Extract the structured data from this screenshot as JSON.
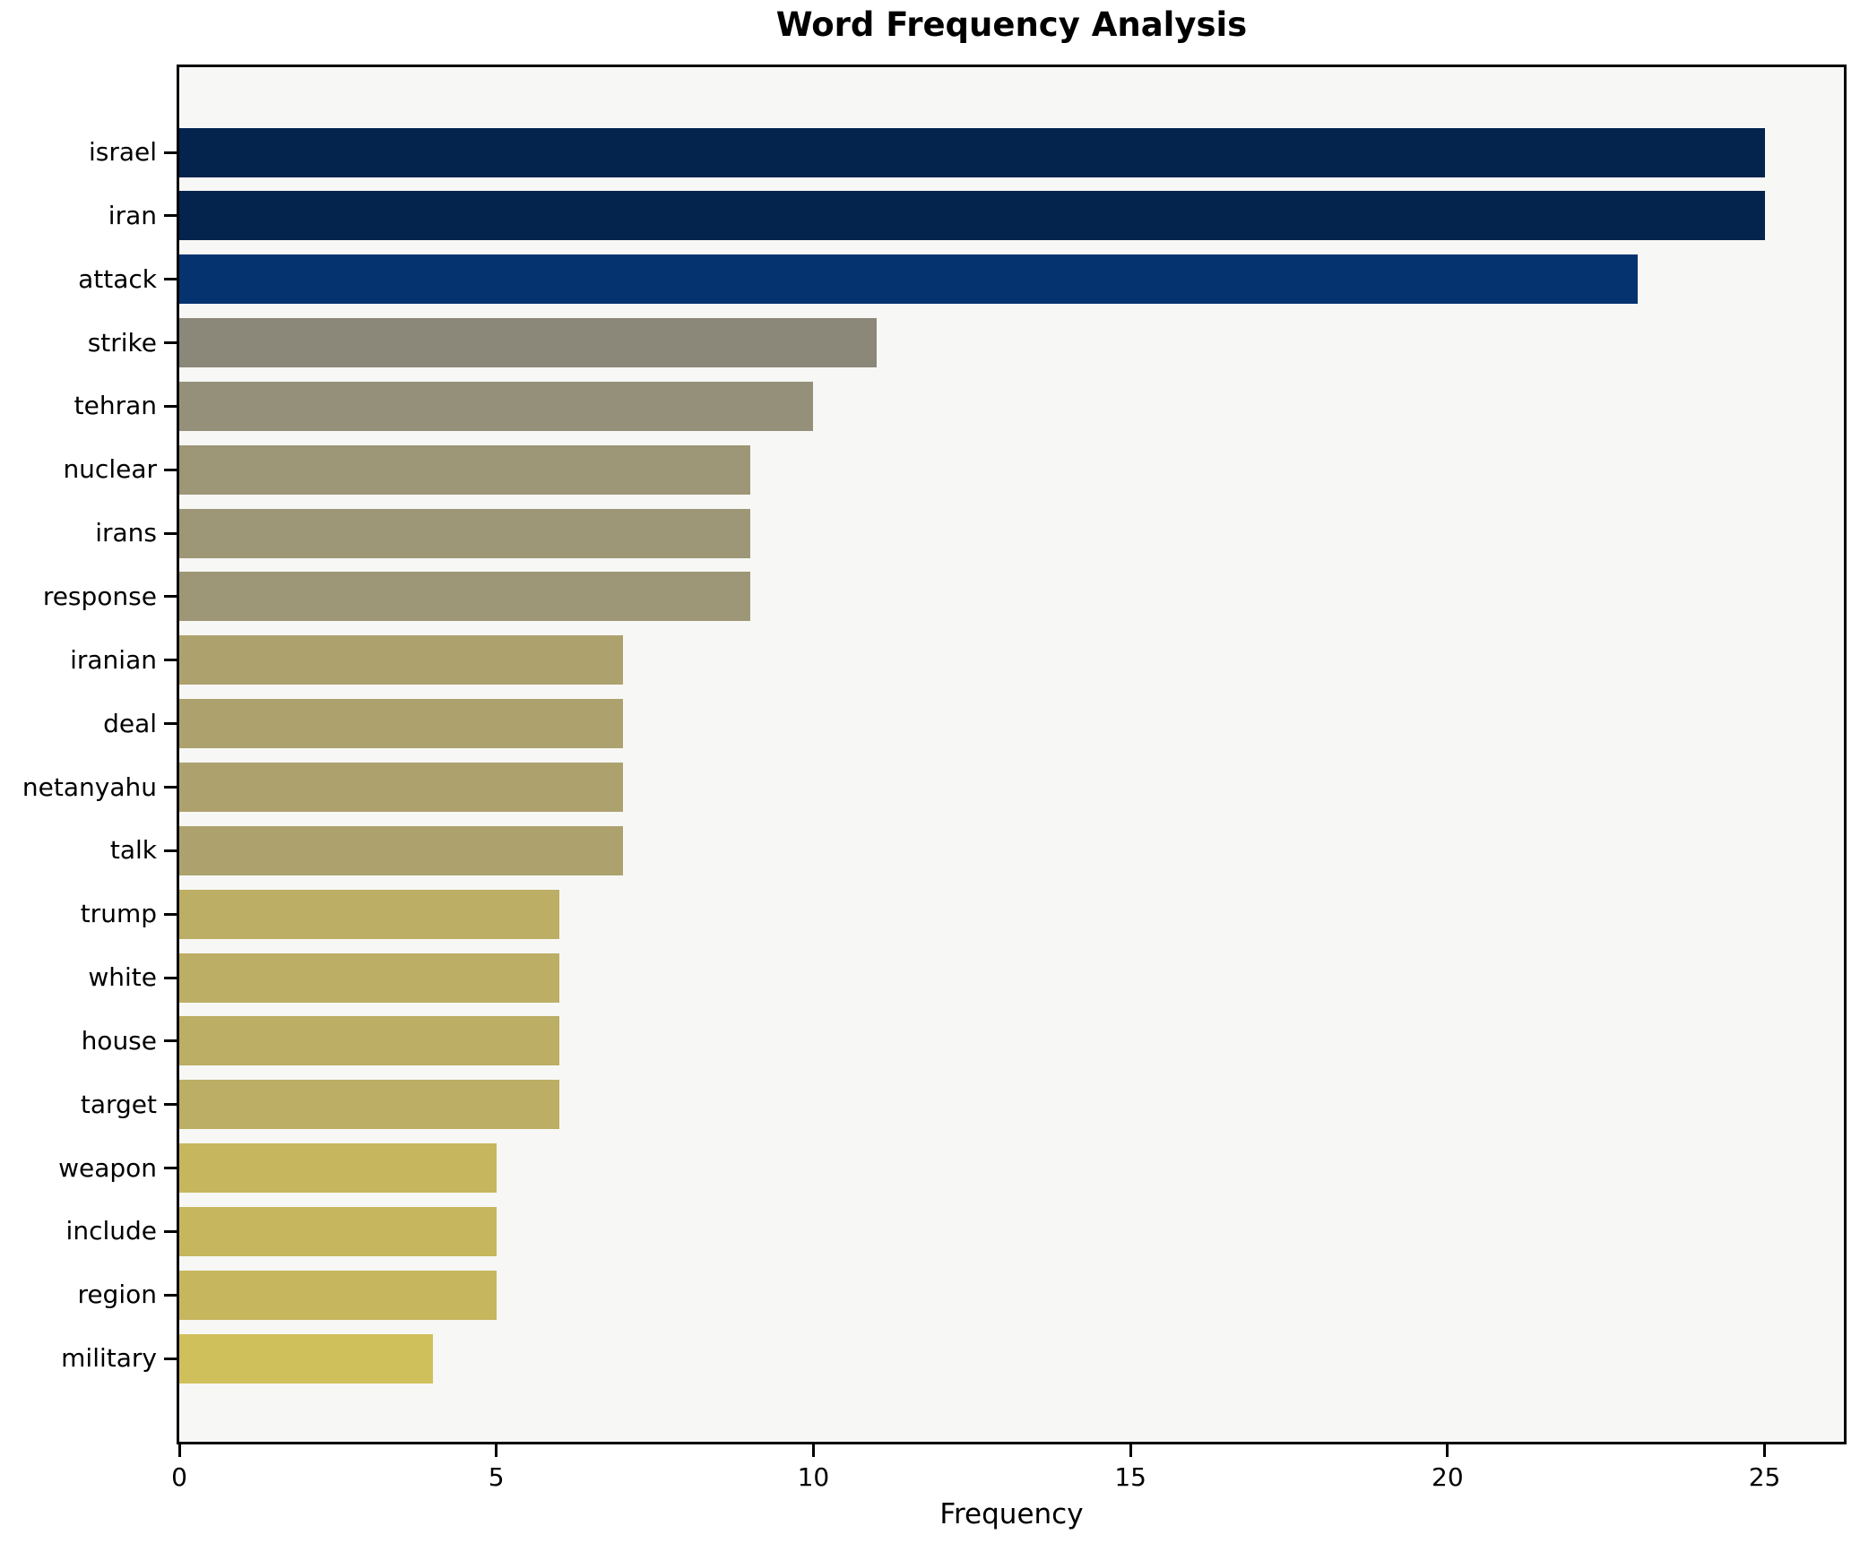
{
  "title": "Word Frequency Analysis",
  "x_axis": {
    "label": "Frequency",
    "ticks": [
      0,
      5,
      10,
      15,
      20,
      25
    ]
  },
  "chart_data": {
    "type": "bar",
    "orientation": "horizontal",
    "title": "Word Frequency Analysis",
    "xlabel": "Frequency",
    "ylabel": "",
    "xlim": [
      0,
      26.25
    ],
    "x_ticks": [
      0,
      5,
      10,
      15,
      20,
      25
    ],
    "grid": false,
    "legend_position": "none",
    "figure_background": "#ffffff",
    "plot_background": "#f7f7f5",
    "spine_color": "#000000",
    "categories": [
      "israel",
      "iran",
      "attack",
      "strike",
      "tehran",
      "nuclear",
      "irans",
      "response",
      "iranian",
      "deal",
      "netanyahu",
      "talk",
      "trump",
      "white",
      "house",
      "target",
      "weapon",
      "include",
      "region",
      "military"
    ],
    "values": [
      25,
      25,
      23,
      11,
      10,
      9,
      9,
      9,
      7,
      7,
      7,
      7,
      6,
      6,
      6,
      6,
      5,
      5,
      5,
      4
    ],
    "bar_colors": [
      "#04234d",
      "#04234d",
      "#05336f",
      "#8b8779",
      "#95907a",
      "#9d9677",
      "#9d9677",
      "#9d9677",
      "#ada26e",
      "#ada26e",
      "#ada26e",
      "#ada26e",
      "#bcae64",
      "#bcae64",
      "#bcae64",
      "#bcae64",
      "#c6b75e",
      "#c6b75e",
      "#c6b75e",
      "#d0c05c"
    ]
  }
}
